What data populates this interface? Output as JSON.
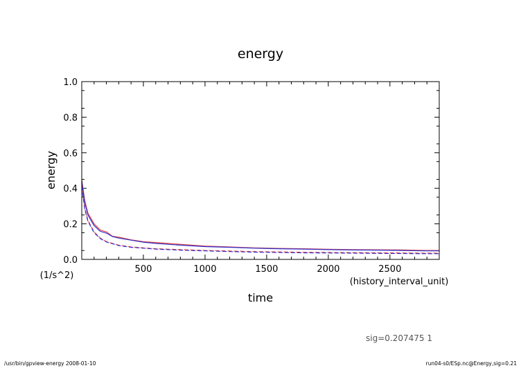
{
  "chart_data": {
    "type": "line",
    "title": "energy",
    "xlabel": "time",
    "xunit": "(history_interval_unit)",
    "ylabel": "energy",
    "yunit": "(1/s^2)",
    "xlim": [
      0,
      2900
    ],
    "ylim": [
      0,
      1.0
    ],
    "xticks": [
      500,
      1000,
      1500,
      2000,
      2500
    ],
    "xtick_labels": [
      "500",
      "1000",
      "1500",
      "2000",
      "2500"
    ],
    "yticks": [
      0,
      0.2,
      0.4,
      0.6,
      0.8,
      1.0
    ],
    "ytick_labels": [
      "0.0",
      "0.2",
      "0.4",
      "0.6",
      "0.8",
      "1.0"
    ],
    "grid": false,
    "series": [
      {
        "color": "#e04040",
        "dash": "solid",
        "x": [
          0,
          25,
          50,
          100,
          150,
          200,
          250,
          300,
          400,
          500,
          600,
          700,
          800,
          1000,
          1200,
          1400,
          1600,
          1800,
          2000,
          2200,
          2400,
          2600,
          2800,
          2900
        ],
        "y": [
          0.45,
          0.33,
          0.26,
          0.2,
          0.165,
          0.155,
          0.13,
          0.125,
          0.11,
          0.1,
          0.095,
          0.09,
          0.085,
          0.075,
          0.07,
          0.065,
          0.062,
          0.06,
          0.057,
          0.055,
          0.054,
          0.053,
          0.05,
          0.05
        ]
      },
      {
        "color": "#3030d0",
        "dash": "solid",
        "x": [
          0,
          25,
          50,
          100,
          150,
          200,
          250,
          300,
          400,
          500,
          600,
          700,
          800,
          1000,
          1200,
          1400,
          1600,
          1800,
          2000,
          2200,
          2400,
          2600,
          2800,
          2900
        ],
        "y": [
          0.44,
          0.32,
          0.25,
          0.19,
          0.158,
          0.148,
          0.128,
          0.12,
          0.108,
          0.097,
          0.09,
          0.085,
          0.08,
          0.072,
          0.068,
          0.063,
          0.06,
          0.058,
          0.055,
          0.053,
          0.052,
          0.05,
          0.048,
          0.048
        ]
      },
      {
        "color": "#e04040",
        "dash": "dashed",
        "x": [
          0,
          25,
          50,
          100,
          150,
          200,
          250,
          300,
          400,
          500,
          600,
          800,
          1000,
          1200,
          1400,
          1600,
          1800,
          2000,
          2200,
          2400,
          2600,
          2800,
          2900
        ],
        "y": [
          0.42,
          0.29,
          0.22,
          0.155,
          0.12,
          0.1,
          0.09,
          0.08,
          0.07,
          0.065,
          0.06,
          0.055,
          0.05,
          0.047,
          0.044,
          0.042,
          0.04,
          0.039,
          0.038,
          0.037,
          0.036,
          0.035,
          0.035
        ]
      },
      {
        "color": "#3030d0",
        "dash": "dashed",
        "x": [
          0,
          25,
          50,
          100,
          150,
          200,
          250,
          300,
          400,
          500,
          600,
          800,
          1000,
          1200,
          1400,
          1600,
          1800,
          2000,
          2200,
          2400,
          2600,
          2800,
          2900
        ],
        "y": [
          0.41,
          0.28,
          0.215,
          0.15,
          0.117,
          0.098,
          0.088,
          0.078,
          0.068,
          0.063,
          0.058,
          0.052,
          0.048,
          0.044,
          0.041,
          0.039,
          0.037,
          0.036,
          0.035,
          0.034,
          0.033,
          0.032,
          0.032
        ]
      }
    ]
  },
  "annotations": {
    "sig": "sig=0.207475  1",
    "footer_left": "/usr/bin/gpview-energy   2008-01-10",
    "footer_right": "run04-s0/ESp.nc@Energy,sig=0.21"
  }
}
